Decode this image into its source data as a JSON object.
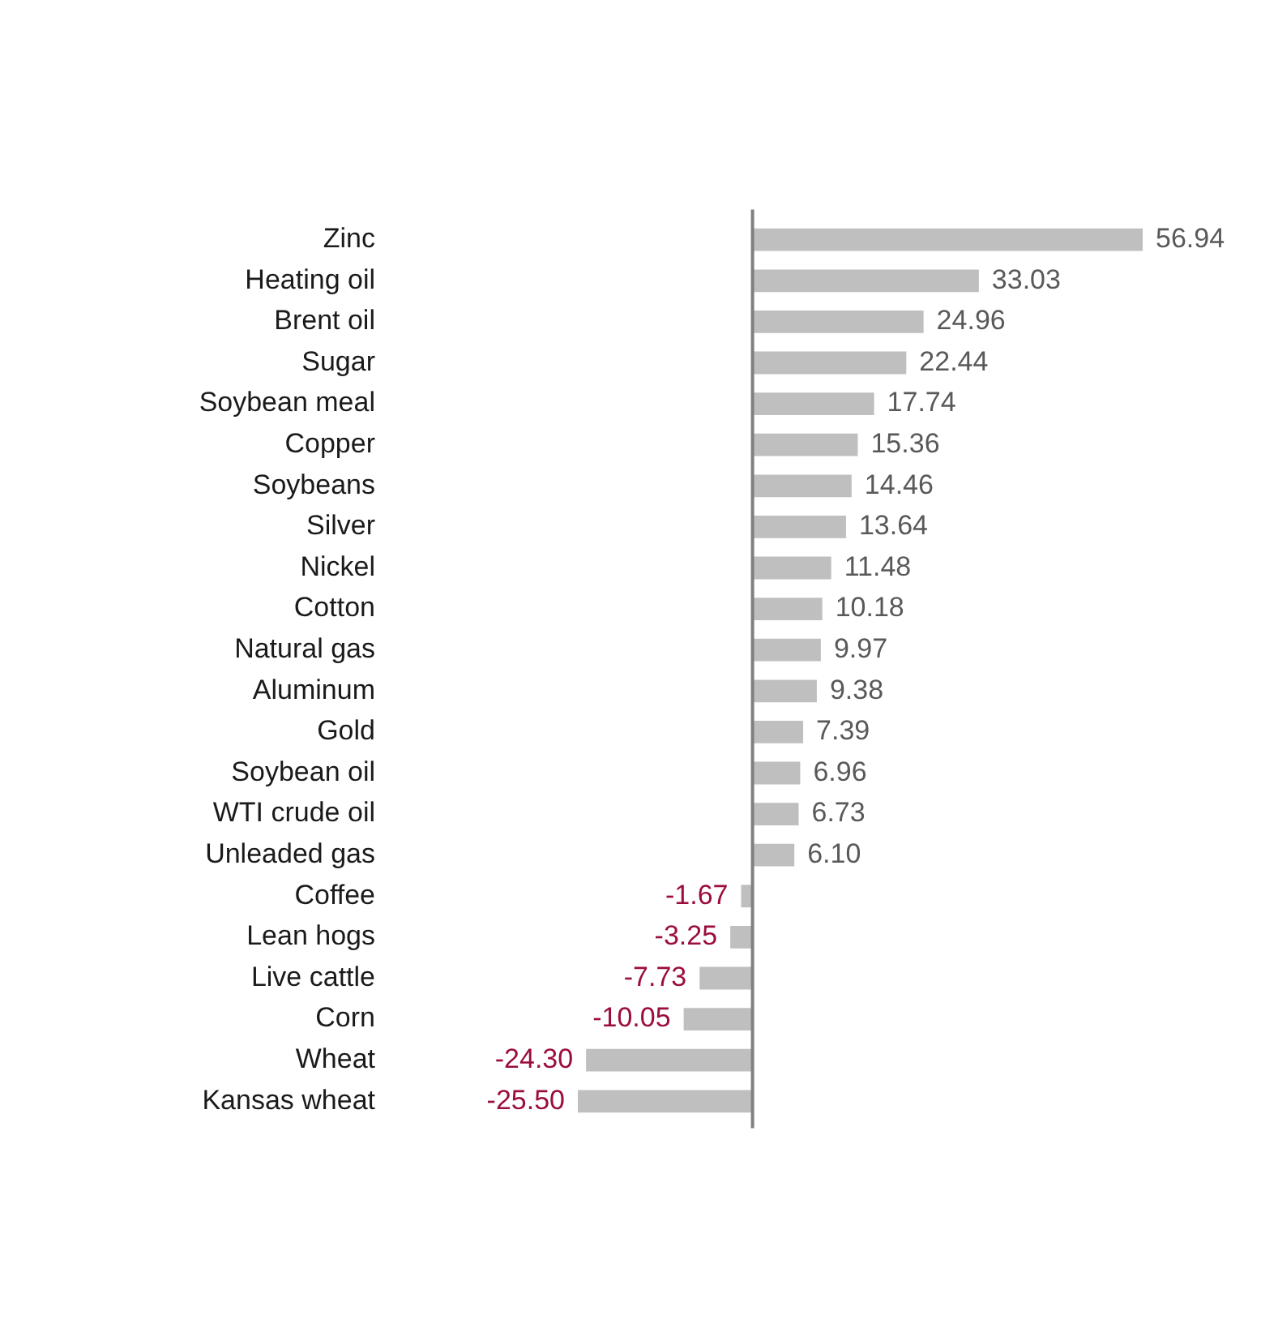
{
  "chart_data": {
    "type": "bar",
    "orientation": "horizontal",
    "categories": [
      "Zinc",
      "Heating oil",
      "Brent oil",
      "Sugar",
      "Soybean meal",
      "Copper",
      "Soybeans",
      "Silver",
      "Nickel",
      "Cotton",
      "Natural gas",
      "Aluminum",
      "Gold",
      "Soybean oil",
      "WTI crude oil",
      "Unleaded gas",
      "Coffee",
      "Lean hogs",
      "Live cattle",
      "Corn",
      "Wheat",
      "Kansas wheat"
    ],
    "values": [
      56.94,
      33.03,
      24.96,
      22.44,
      17.74,
      15.36,
      14.46,
      13.64,
      11.48,
      10.18,
      9.97,
      9.38,
      7.39,
      6.96,
      6.73,
      6.1,
      -1.67,
      -3.25,
      -7.73,
      -10.05,
      -24.3,
      -25.5
    ],
    "color": "#bfbfbf",
    "value_labels": [
      "56.94",
      "33.03",
      "24.96",
      "22.44",
      "17.74",
      "15.36",
      "14.46",
      "13.64",
      "11.48",
      "10.18",
      "9.97",
      "9.38",
      "7.39",
      "6.96",
      "6.73",
      "6.10",
      "-1.67",
      "-3.25",
      "-7.73",
      "-10.05",
      "-24.30",
      "-25.50"
    ],
    "tick_labels": "y",
    "grid": false,
    "legend": false
  }
}
